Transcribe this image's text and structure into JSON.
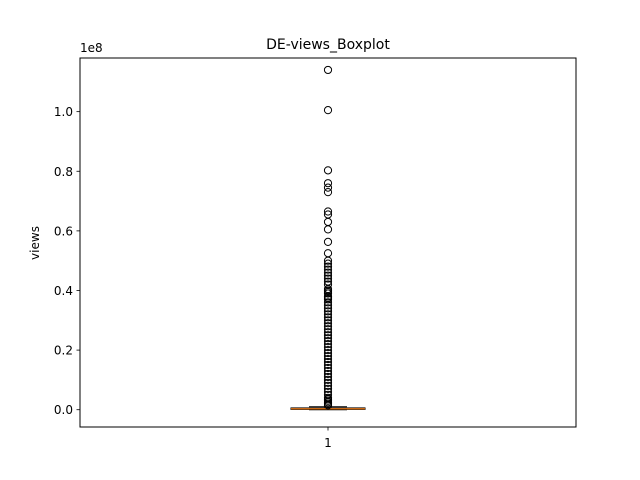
{
  "chart_data": {
    "type": "boxplot",
    "title": "DE-views_Boxplot",
    "ylabel": "views",
    "xlabel": "",
    "y_offset_label": "1e8",
    "categories": [
      "1"
    ],
    "ylim": [
      -0.058,
      1.18
    ],
    "y_ticks": [
      0.0,
      0.2,
      0.4,
      0.6,
      0.8,
      1.0
    ],
    "y_tick_labels": [
      "0.0",
      "0.2",
      "0.4",
      "0.6",
      "0.8",
      "1.0"
    ],
    "box": {
      "q1": 0.001,
      "median": 0.003,
      "q3": 0.006,
      "whisker_low": 0.0,
      "whisker_high": 0.01
    },
    "outliers": [
      1.14,
      1.005,
      0.803,
      0.76,
      0.745,
      0.73,
      0.665,
      0.655,
      0.63,
      0.605,
      0.563,
      0.525,
      0.5,
      0.49,
      0.48,
      0.47,
      0.46,
      0.45,
      0.44,
      0.43,
      0.42,
      0.405,
      0.4,
      0.395,
      0.39,
      0.38,
      0.375,
      0.37,
      0.36,
      0.35,
      0.34,
      0.33,
      0.32,
      0.31,
      0.3,
      0.29,
      0.28,
      0.27,
      0.26,
      0.25,
      0.24,
      0.23,
      0.22,
      0.21,
      0.2,
      0.19,
      0.18,
      0.17,
      0.16,
      0.15,
      0.14,
      0.13,
      0.12,
      0.11,
      0.1,
      0.09,
      0.08,
      0.07,
      0.06,
      0.05,
      0.04,
      0.035,
      0.03,
      0.025,
      0.02,
      0.015
    ],
    "colors": {
      "box": "#000000",
      "median": "#ff7f0e",
      "outlier": "#000000"
    },
    "grid": false
  }
}
